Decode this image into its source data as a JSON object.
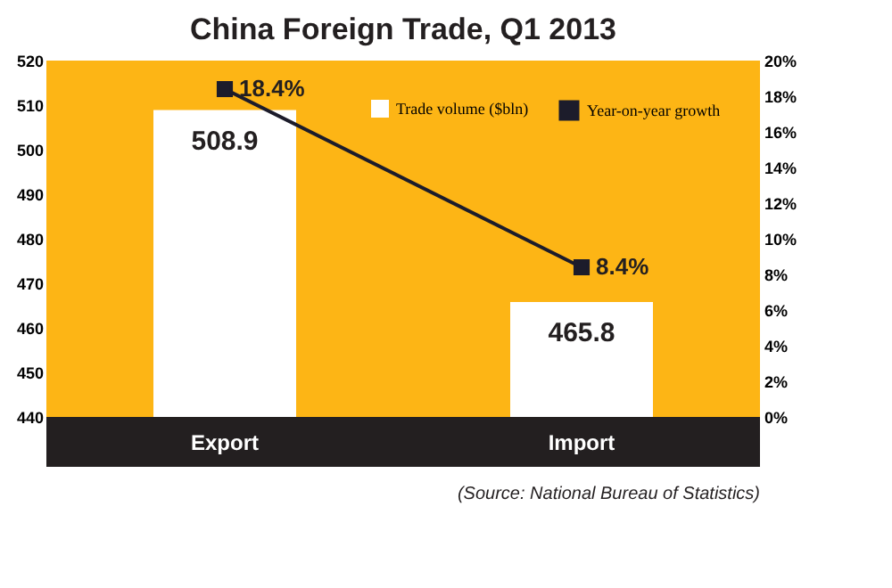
{
  "chart_data": {
    "type": "bar",
    "title": "China Foreign Trade, Q1 2013",
    "categories": [
      "Export",
      "Import"
    ],
    "series": [
      {
        "name": "Trade volume ($bln)",
        "color": "#ffffff",
        "values": [
          508.9,
          465.8
        ],
        "value_labels": [
          "508.9",
          "465.8"
        ]
      },
      {
        "name": "Year-on-year growth",
        "type": "line",
        "axis": "y2",
        "color": "#1c1c2b",
        "marker": "square",
        "values": [
          18.4,
          8.4
        ],
        "value_labels": [
          "18.4%",
          "8.4%"
        ]
      }
    ],
    "ylim": [
      440,
      520
    ],
    "yticks": [
      440,
      450,
      460,
      470,
      480,
      490,
      500,
      510,
      520
    ],
    "y2lim": [
      0,
      20
    ],
    "y2ticks": [
      {
        "value": 0,
        "label": "0%"
      },
      {
        "value": 2,
        "label": "2%"
      },
      {
        "value": 4,
        "label": "4%"
      },
      {
        "value": 6,
        "label": "6%"
      },
      {
        "value": 8,
        "label": "8%"
      },
      {
        "value": 10,
        "label": "10%"
      },
      {
        "value": 12,
        "label": "12%"
      },
      {
        "value": 14,
        "label": "14%"
      },
      {
        "value": 16,
        "label": "16%"
      },
      {
        "value": 18,
        "label": "18%"
      },
      {
        "value": 20,
        "label": "20%"
      }
    ],
    "grid": false,
    "legend": "top right",
    "annotations": [
      "(Source: National Bureau of Statistics)"
    ]
  }
}
